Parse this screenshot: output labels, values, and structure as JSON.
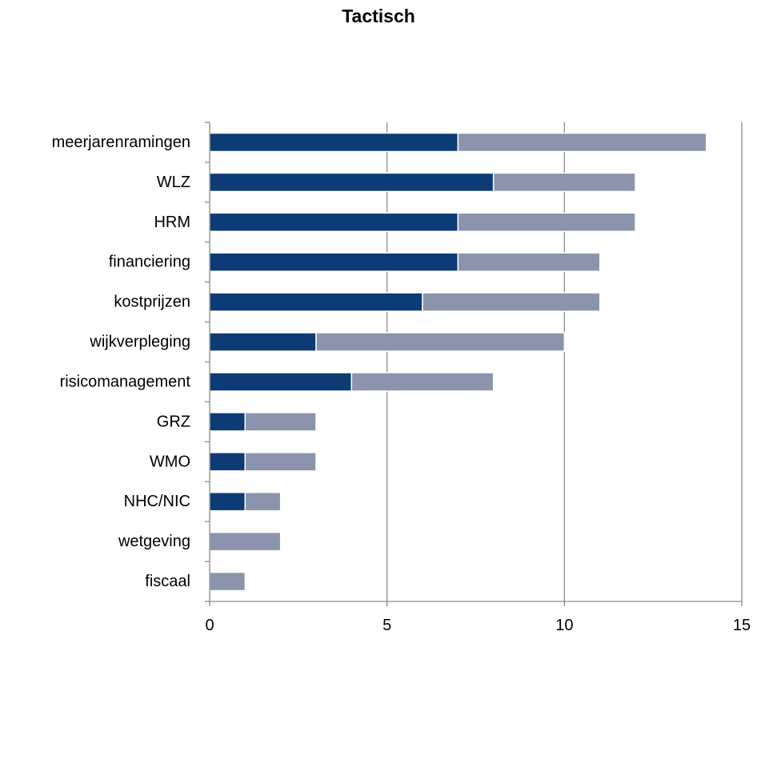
{
  "chart_data": {
    "type": "bar",
    "orientation": "horizontal",
    "stacked": true,
    "title": "Tactisch",
    "xlabel": "",
    "ylabel": "",
    "xlim": [
      0,
      15
    ],
    "xticks": [
      0,
      5,
      10,
      15
    ],
    "grid": "vertical",
    "legend": "none",
    "categories": [
      "meerjarenramingen",
      "WLZ",
      "HRM",
      "financiering",
      "kostprijzen",
      "wijkverpleging",
      "risicomanagement",
      "GRZ",
      "WMO",
      "NHC/NIC",
      "wetgeving",
      "fiscaal"
    ],
    "series": [
      {
        "color": "#0d3b75",
        "values": [
          7,
          8,
          7,
          7,
          6,
          3,
          4,
          1,
          1,
          1,
          0,
          0
        ]
      },
      {
        "color": "#8a94ad",
        "values": [
          7,
          4,
          5,
          4,
          5,
          7,
          4,
          2,
          2,
          1,
          2,
          1
        ]
      }
    ]
  }
}
